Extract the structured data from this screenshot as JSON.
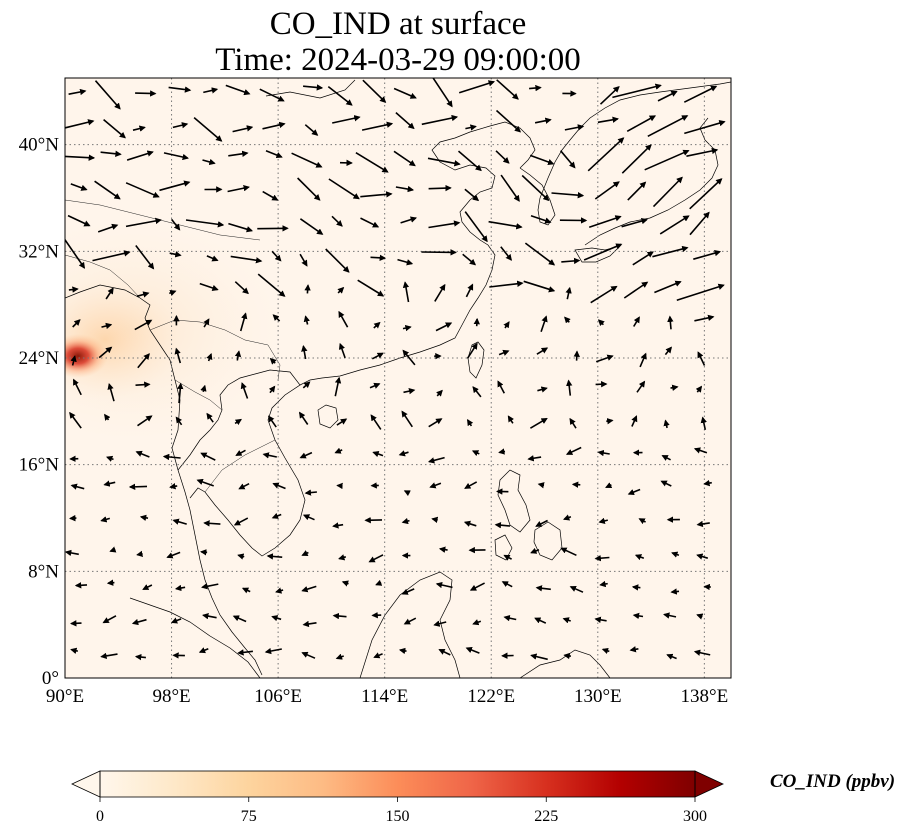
{
  "title": {
    "line1": "CO_IND at surface",
    "line2": "Time: 2024-03-29 09:00:00"
  },
  "map": {
    "projection": "PlateCarree",
    "lon_range": [
      90,
      140
    ],
    "lat_range": [
      0,
      45
    ],
    "gridlines": "dotted",
    "x_ticks": [
      "90°E",
      "98°E",
      "106°E",
      "114°E",
      "122°E",
      "130°E",
      "138°E"
    ],
    "y_ticks": [
      "0°",
      "8°N",
      "16°N",
      "24°N",
      "32°N",
      "40°N"
    ],
    "field_note_colors": {
      "background": "#fff5eb",
      "hotspot": "#8b1a0a"
    }
  },
  "colorbar": {
    "label": "CO_IND (ppbv)",
    "ticks": [
      "0",
      "75",
      "150",
      "225",
      "300"
    ],
    "range": [
      0,
      300
    ],
    "extend": "both",
    "colormap": "OrRd",
    "stops": [
      "#fff7ec",
      "#fee8c8",
      "#fdd49e",
      "#fdbb84",
      "#fc8d59",
      "#ef6548",
      "#d7301f",
      "#b30000",
      "#7f0000"
    ]
  }
}
